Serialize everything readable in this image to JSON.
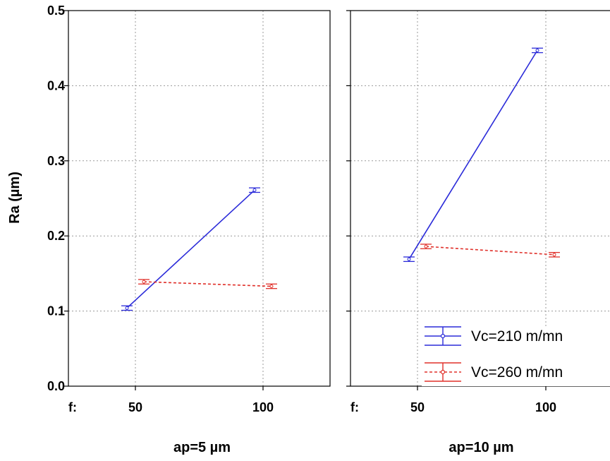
{
  "chart_data": {
    "type": "line",
    "ylabel": "Ra (µm)",
    "ylim": [
      0.0,
      0.5
    ],
    "yticks": [
      "0.0",
      "0.1",
      "0.2",
      "0.3",
      "0.4",
      "0.5"
    ],
    "xaxis_prefix": "f:",
    "categories": [
      "50",
      "100"
    ],
    "grid": true,
    "legend_position": "bottom-right",
    "panels": [
      {
        "label": "ap=5 µm",
        "series": [
          {
            "name": "Vc=210 m/mn",
            "color": "#2b2bd9",
            "dash": "solid",
            "values": [
              0.104,
              0.261
            ],
            "errors": [
              0.003,
              0.003
            ]
          },
          {
            "name": "Vc=260 m/mn",
            "color": "#e0302a",
            "dash": "dashed",
            "values": [
              0.139,
              0.133
            ],
            "errors": [
              0.003,
              0.003
            ]
          }
        ]
      },
      {
        "label": "ap=10 µm",
        "series": [
          {
            "name": "Vc=210 m/mn",
            "color": "#2b2bd9",
            "dash": "solid",
            "values": [
              0.169,
              0.447
            ],
            "errors": [
              0.003,
              0.003
            ]
          },
          {
            "name": "Vc=260 m/mn",
            "color": "#e0302a",
            "dash": "dashed",
            "values": [
              0.186,
              0.175
            ],
            "errors": [
              0.003,
              0.003
            ]
          }
        ]
      }
    ]
  }
}
